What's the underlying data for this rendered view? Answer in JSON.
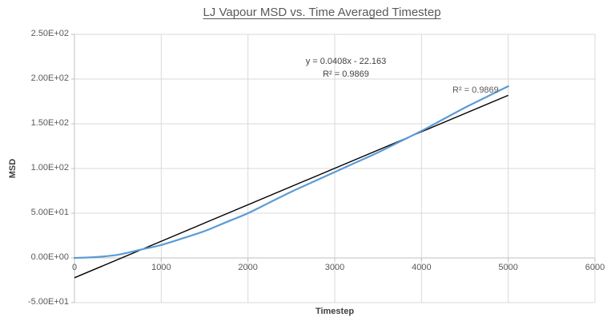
{
  "chart_data": {
    "type": "line",
    "title": "LJ Vapour MSD vs. Time Averaged Timestep",
    "xlabel": "Timestep",
    "ylabel": "MSD",
    "xlim": [
      0,
      6000
    ],
    "ylim": [
      -50,
      250
    ],
    "grid": true,
    "legend": "none",
    "x_ticks": [
      0,
      1000,
      2000,
      3000,
      4000,
      5000,
      6000
    ],
    "x_tick_labels": [
      "0",
      "1000",
      "2000",
      "3000",
      "4000",
      "5000",
      "6000"
    ],
    "y_ticks": [
      -50,
      0,
      50,
      100,
      150,
      200,
      250
    ],
    "y_tick_labels": [
      "-5.00E+01",
      "0.00E+00",
      "5.00E+01",
      "1.00E+02",
      "1.50E+02",
      "2.00E+02",
      "2.50E+02"
    ],
    "series": [
      {
        "name": "MSD",
        "style": "smooth",
        "color": "#5B9BD5",
        "x": [
          0,
          250,
          500,
          750,
          1000,
          1250,
          1500,
          1750,
          2000,
          2250,
          2500,
          2750,
          3000,
          3250,
          3500,
          3750,
          4000,
          4250,
          4500,
          4750,
          5000
        ],
        "y": [
          0,
          1,
          3.5,
          9,
          14.5,
          22,
          30,
          40,
          50,
          62,
          74,
          85,
          96,
          107,
          118,
          130,
          142,
          155,
          168,
          180,
          192
        ]
      }
    ],
    "trendline": {
      "slope": 0.0408,
      "intercept": -22.163,
      "x_range": [
        0,
        5000
      ],
      "color": "#000000"
    },
    "annotations": {
      "equation_line1": "y = 0.0408x - 22.163",
      "equation_line2": "R² = 0.9869",
      "trendline_r2_label": "R² = 0.9869"
    },
    "colors": {
      "grid": "#D9D9D9",
      "axis": "#BFBFBF",
      "tick_text": "#595959",
      "series_line": "#5B9BD5",
      "trend_line": "#000000"
    }
  }
}
